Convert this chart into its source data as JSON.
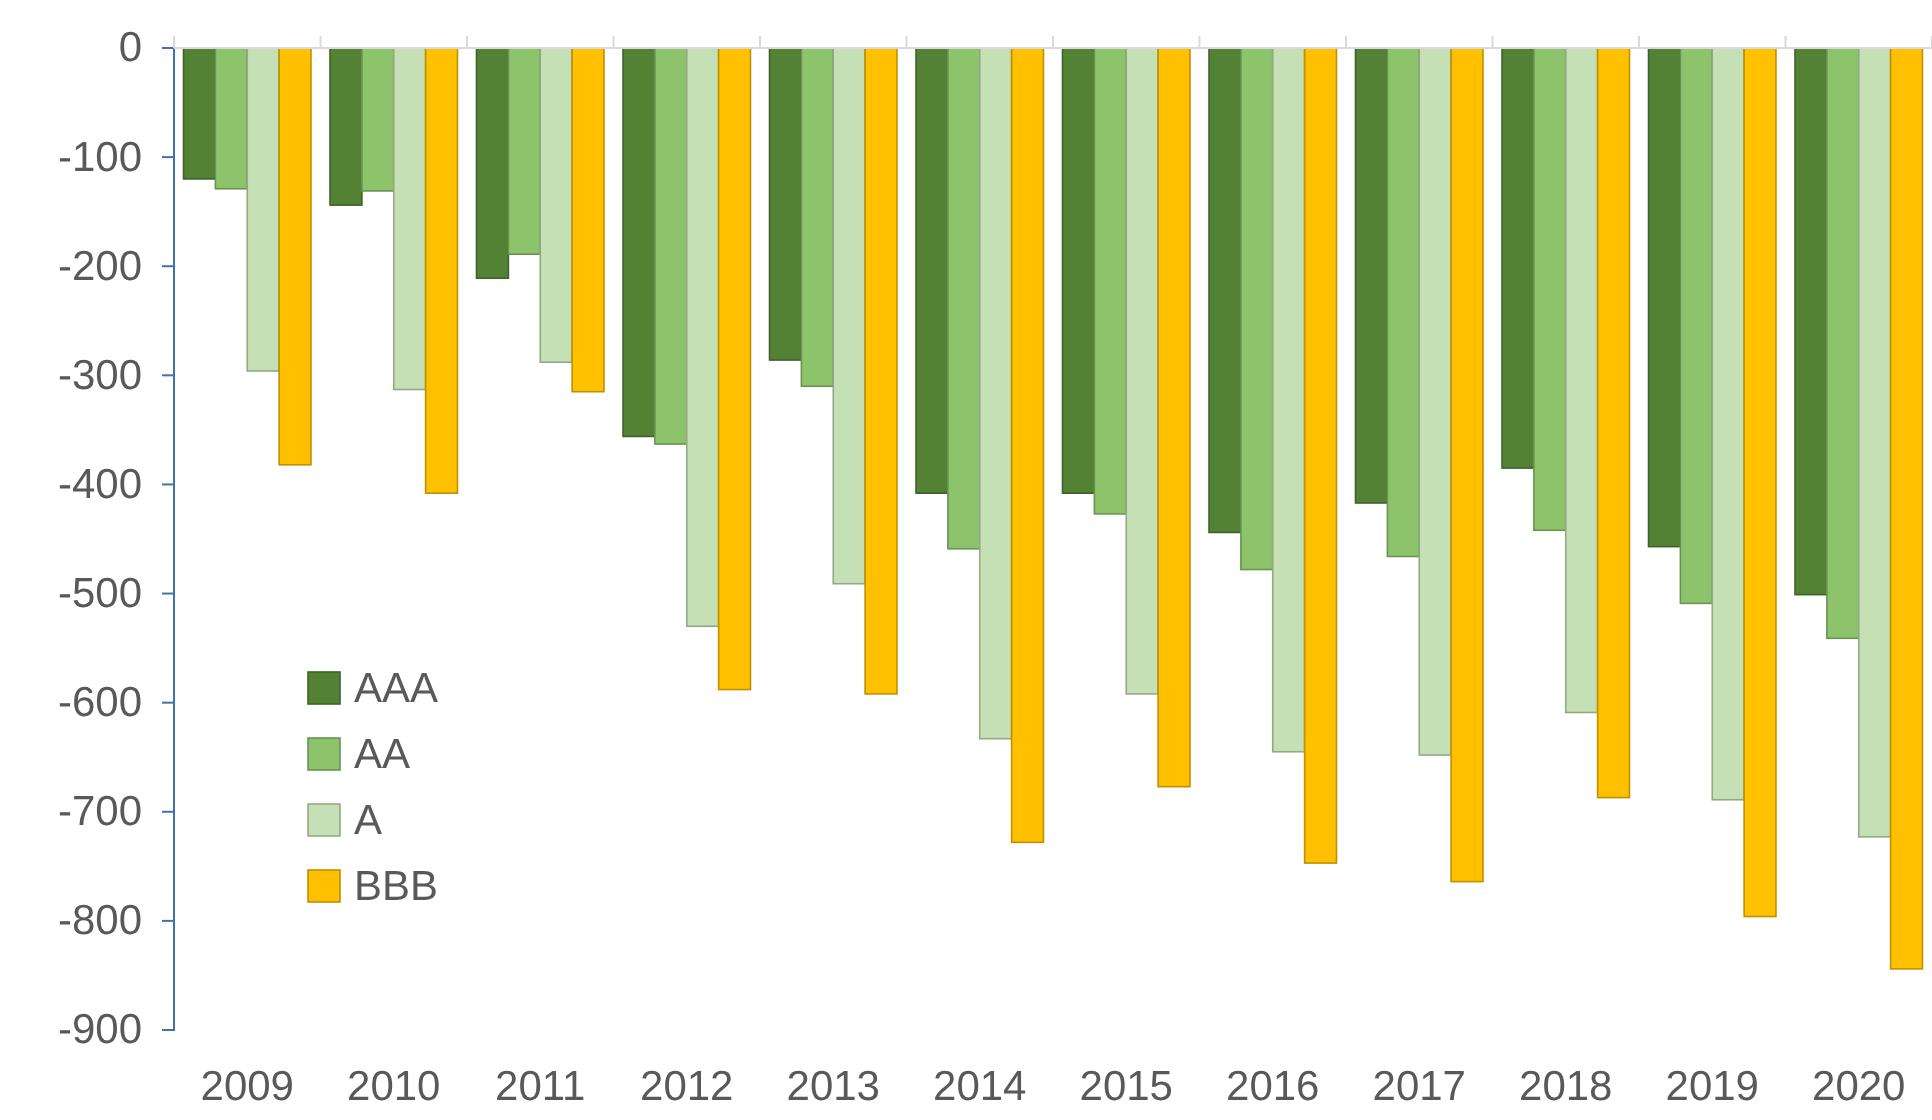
{
  "chart_data": {
    "type": "bar",
    "categories": [
      "2009",
      "2010",
      "2011",
      "2012",
      "2013",
      "2014",
      "2015",
      "2016",
      "2017",
      "2018",
      "2019",
      "2020"
    ],
    "series": [
      {
        "name": "AAA",
        "color": "#548235",
        "values": [
          -120,
          -144,
          -211,
          -356,
          -286,
          -408,
          -408,
          -444,
          -417,
          -385,
          -457,
          -501
        ]
      },
      {
        "name": "AA",
        "color": "#8dc36b",
        "values": [
          -129,
          -131,
          -189,
          -363,
          -310,
          -459,
          -427,
          -478,
          -466,
          -442,
          -509,
          -541
        ]
      },
      {
        "name": "A",
        "color": "#c5e0b4",
        "values": [
          -296,
          -313,
          -288,
          -530,
          -491,
          -633,
          -592,
          -645,
          -648,
          -609,
          -689,
          -723
        ]
      },
      {
        "name": "BBB",
        "color": "#ffc000",
        "values": [
          -382,
          -408,
          -315,
          -588,
          -592,
          -728,
          -677,
          -747,
          -764,
          -687,
          -796,
          -844
        ]
      }
    ],
    "ylim": [
      -900,
      0
    ],
    "yticks": [
      0,
      -100,
      -200,
      -300,
      -400,
      -500,
      -600,
      -700,
      -800,
      -900
    ],
    "grid": false,
    "legend": "bottom left"
  }
}
